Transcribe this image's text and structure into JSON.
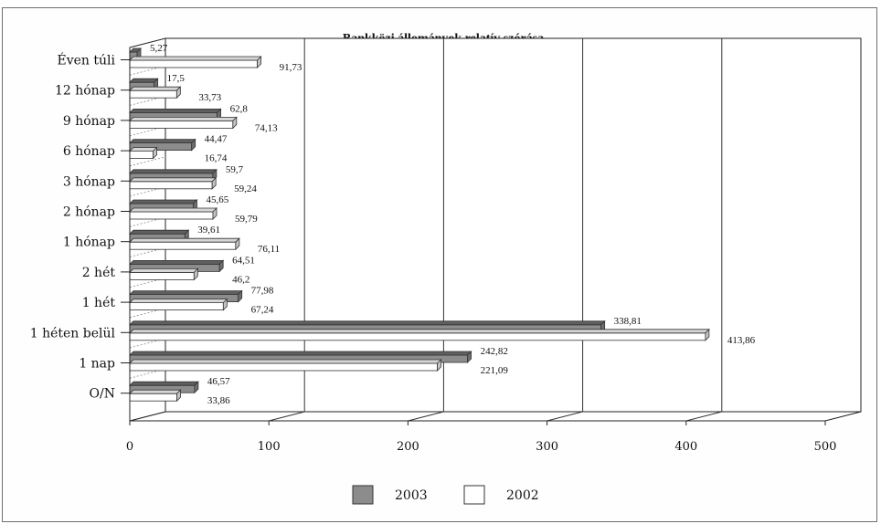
{
  "chart_data": {
    "type": "bar",
    "orientation": "horizontal",
    "title": "Bankközi állományok relatív szórása",
    "categories": [
      "Éven túli",
      "12 hónap",
      "9 hónap",
      "6 hónap",
      "3 hónap",
      "2 hónap",
      "1 hónap",
      "2 hét",
      "1 hét",
      "1 héten belül",
      "1 nap",
      "O/N"
    ],
    "series": [
      {
        "name": "2003",
        "values": [
          5.27,
          17.5,
          62.8,
          44.47,
          59.7,
          45.65,
          39.61,
          64.51,
          77.98,
          338.81,
          242.82,
          46.57
        ],
        "labels": [
          "5,27",
          "17,5",
          "62,8",
          "44,47",
          "59,7",
          "45,65",
          "39,61",
          "64,51",
          "77,98",
          "338,81",
          "242,82",
          "46,57"
        ]
      },
      {
        "name": "2002",
        "values": [
          91.73,
          33.73,
          74.13,
          16.74,
          59.24,
          59.79,
          76.11,
          46.2,
          67.24,
          413.86,
          221.09,
          33.86
        ],
        "labels": [
          "91,73",
          "33,73",
          "74,13",
          "16,74",
          "59,24",
          "59,79",
          "76,11",
          "46,2",
          "67,24",
          "413,86",
          "221,09",
          "33,86"
        ]
      }
    ],
    "xlim": [
      0,
      500
    ],
    "xticks": [
      "0",
      "100",
      "200",
      "300",
      "400",
      "500"
    ],
    "grid": true,
    "legend": "bottom",
    "colors": {
      "2003": "#8c8c8c",
      "2002": "#ffffff"
    }
  }
}
